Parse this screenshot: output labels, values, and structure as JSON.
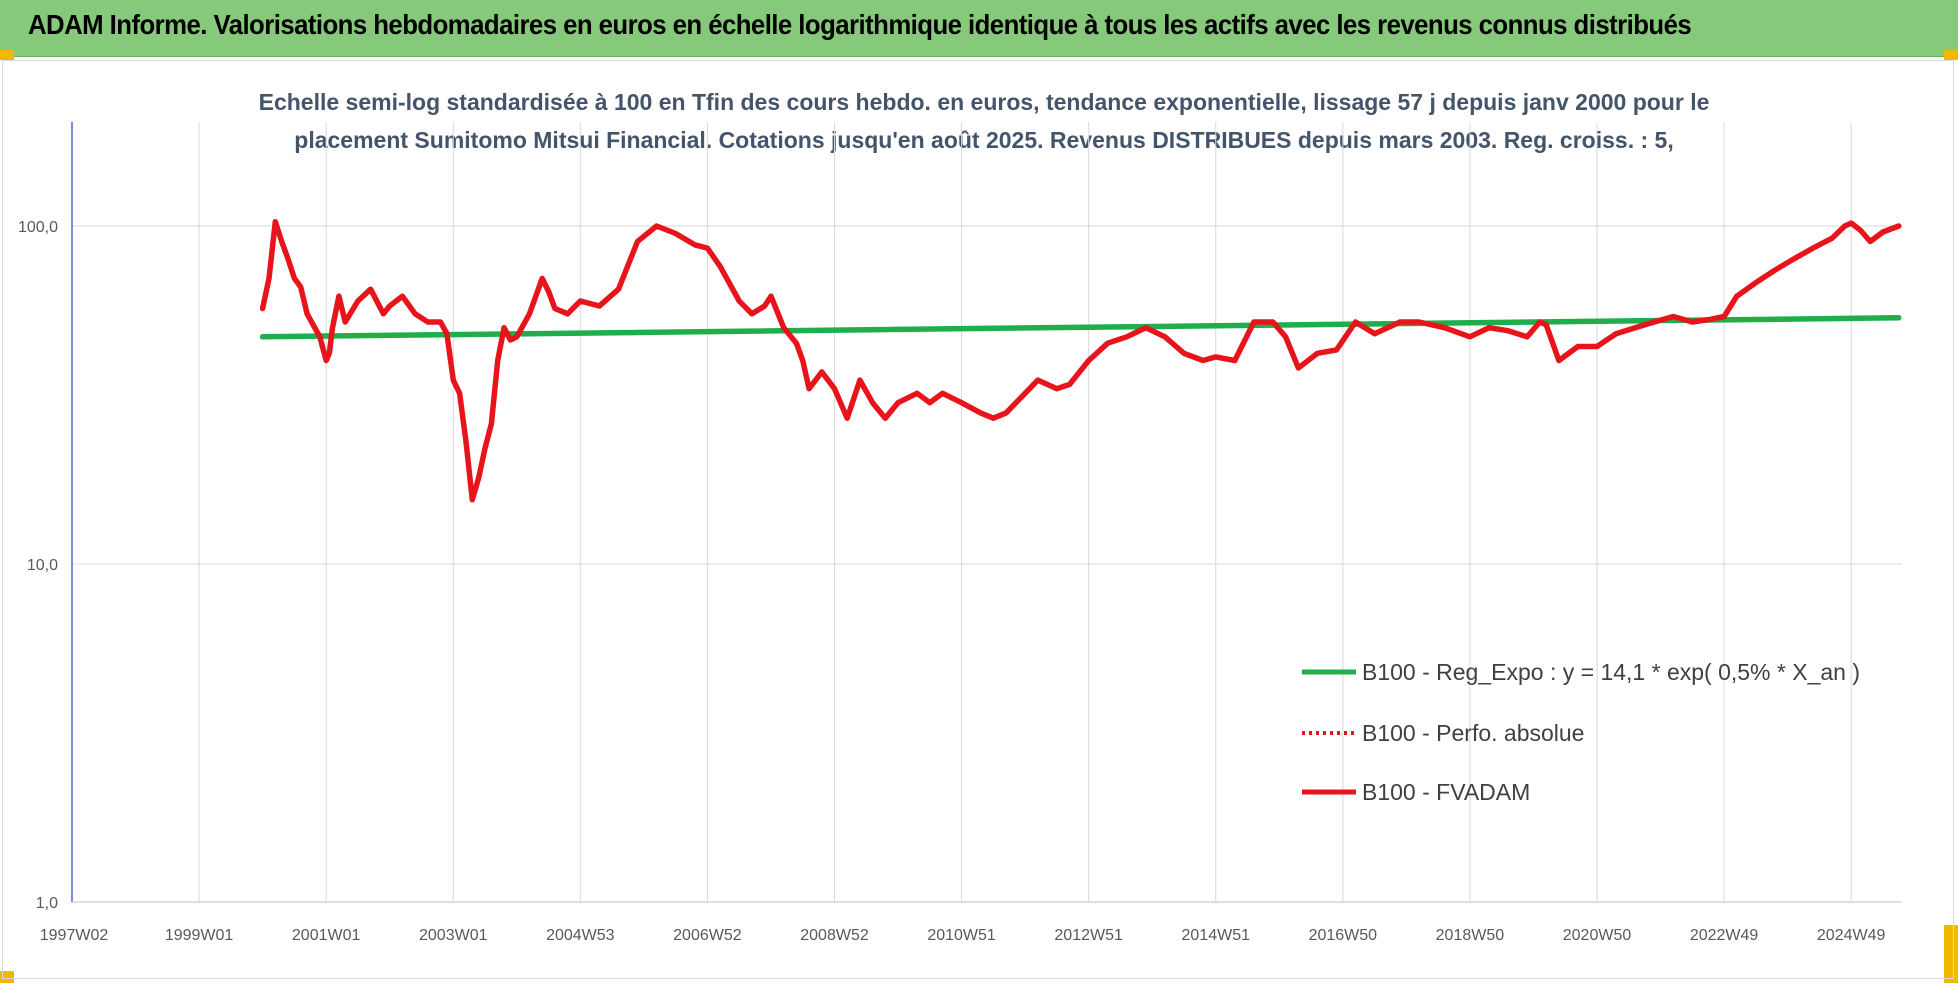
{
  "header": {
    "title": "ADAM Informe. Valorisations hebdomadaires en euros en échelle logarithmique identique à tous les actifs avec les revenus connus distribués"
  },
  "colors": {
    "banner": "#86c97a",
    "corner": "#f2b800",
    "green_series": "#1fae4b",
    "red_series": "#e8141b",
    "subtitle": "#44546a",
    "gridline": "#d9d9d9"
  },
  "chart_data": {
    "type": "line",
    "title_line1": "Echelle semi-log standardisée à 100 en Tfin des cours hebdo. en euros, tendance exponentielle, lissage 57 j depuis janv 2000 pour le",
    "title_line2": "placement Sumitomo Mitsui Financial. Cotations jusqu'en août 2025. Revenus DISTRIBUES depuis mars 2003. Reg. croiss. : 5,",
    "y_scale": "log",
    "ylim": [
      1,
      180
    ],
    "y_ticks": [
      {
        "value": 1,
        "label": "1,0"
      },
      {
        "value": 10,
        "label": "10,0"
      },
      {
        "value": 100,
        "label": "100,0"
      }
    ],
    "xlim": [
      1997.0,
      2025.8
    ],
    "x_ticks": [
      {
        "value": 1997.0,
        "label": "1997W02"
      },
      {
        "value": 1999.0,
        "label": "1999W01"
      },
      {
        "value": 2001.0,
        "label": "2001W01"
      },
      {
        "value": 2003.0,
        "label": "2003W01"
      },
      {
        "value": 2005.0,
        "label": "2004W53"
      },
      {
        "value": 2007.0,
        "label": "2006W52"
      },
      {
        "value": 2009.0,
        "label": "2008W52"
      },
      {
        "value": 2011.0,
        "label": "2010W51"
      },
      {
        "value": 2013.0,
        "label": "2012W51"
      },
      {
        "value": 2015.0,
        "label": "2014W51"
      },
      {
        "value": 2017.0,
        "label": "2016W50"
      },
      {
        "value": 2019.0,
        "label": "2018W50"
      },
      {
        "value": 2021.0,
        "label": "2020W50"
      },
      {
        "value": 2023.0,
        "label": "2022W49"
      },
      {
        "value": 2025.0,
        "label": "2024W49"
      }
    ],
    "grid": true,
    "legend_position": "bottom-right",
    "series": [
      {
        "name": "B100 - Reg_Expo : y = 14,1 * exp( 0,5% *  X_an )",
        "style": "solid-green",
        "x": [
          2000.0,
          2025.75
        ],
        "values": [
          47,
          53.5
        ]
      },
      {
        "name": "B100 - Perfo. absolue",
        "style": "dotted-red",
        "x": [],
        "values": []
      },
      {
        "name": "B100 - FVADAM",
        "style": "solid-red",
        "x": [
          2000.0,
          2000.1,
          2000.2,
          2000.3,
          2000.4,
          2000.5,
          2000.6,
          2000.7,
          2000.9,
          2001.0,
          2001.05,
          2001.1,
          2001.2,
          2001.3,
          2001.5,
          2001.7,
          2001.9,
          2002.0,
          2002.2,
          2002.4,
          2002.6,
          2002.8,
          2002.9,
          2003.0,
          2003.1,
          2003.2,
          2003.3,
          2003.4,
          2003.5,
          2003.6,
          2003.7,
          2003.8,
          2003.9,
          2004.0,
          2004.2,
          2004.4,
          2004.5,
          2004.6,
          2004.8,
          2005.0,
          2005.3,
          2005.6,
          2005.9,
          2006.2,
          2006.5,
          2006.8,
          2007.0,
          2007.2,
          2007.5,
          2007.7,
          2007.9,
          2008.0,
          2008.2,
          2008.4,
          2008.5,
          2008.6,
          2008.8,
          2009.0,
          2009.2,
          2009.4,
          2009.6,
          2009.8,
          2010.0,
          2010.3,
          2010.5,
          2010.7,
          2011.0,
          2011.3,
          2011.5,
          2011.7,
          2012.0,
          2012.2,
          2012.5,
          2012.7,
          2013.0,
          2013.3,
          2013.6,
          2013.9,
          2014.2,
          2014.5,
          2014.8,
          2015.0,
          2015.3,
          2015.6,
          2015.9,
          2016.1,
          2016.3,
          2016.6,
          2016.9,
          2017.2,
          2017.5,
          2017.9,
          2018.2,
          2018.6,
          2019.0,
          2019.3,
          2019.6,
          2019.9,
          2020.1,
          2020.2,
          2020.4,
          2020.7,
          2021.0,
          2021.3,
          2021.6,
          2021.9,
          2022.2,
          2022.5,
          2022.8,
          2023.0,
          2023.2,
          2023.5,
          2023.8,
          2024.1,
          2024.4,
          2024.7,
          2024.9,
          2025.0,
          2025.15,
          2025.3,
          2025.5,
          2025.75
        ],
        "values": [
          57,
          70,
          103,
          90,
          80,
          70,
          66,
          55,
          47,
          40,
          42,
          50,
          62,
          52,
          60,
          65,
          55,
          58,
          62,
          55,
          52,
          52,
          48,
          35,
          32,
          23,
          15.5,
          18,
          22,
          26,
          40,
          50,
          46,
          47,
          55,
          70,
          64,
          57,
          55,
          60,
          58,
          65,
          90,
          100,
          95,
          88,
          86,
          76,
          60,
          55,
          58,
          62,
          50,
          45,
          40,
          33,
          37,
          33,
          27,
          35,
          30,
          27,
          30,
          32,
          30,
          32,
          30,
          28,
          27,
          28,
          32,
          35,
          33,
          34,
          40,
          45,
          47,
          50,
          47,
          42,
          40,
          41,
          40,
          52,
          52,
          47,
          38,
          42,
          43,
          52,
          48,
          52,
          52,
          50,
          47,
          50,
          49,
          47,
          52,
          51,
          40,
          44,
          44,
          48,
          50,
          52,
          54,
          52,
          53,
          54,
          62,
          68,
          74,
          80,
          86,
          92,
          100,
          102,
          97,
          90,
          96,
          100
        ]
      }
    ]
  }
}
